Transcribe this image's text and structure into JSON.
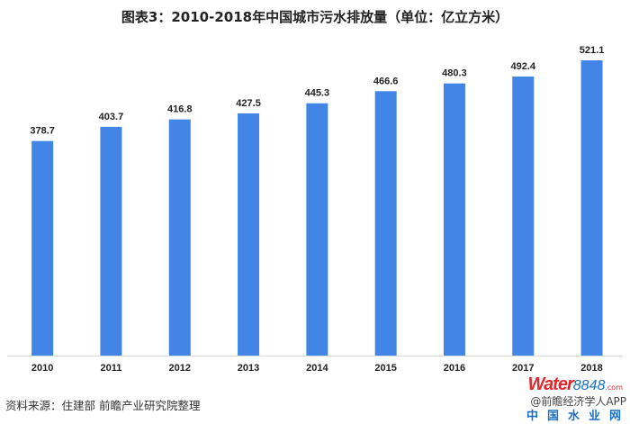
{
  "chart_data": {
    "type": "bar",
    "title": "图表3：2010-2018年中国城市污水排放量（单位：亿立方米）",
    "categories": [
      "2010",
      "2011",
      "2012",
      "2013",
      "2014",
      "2015",
      "2016",
      "2017",
      "2018"
    ],
    "values": [
      378.7,
      403.7,
      416.8,
      427.5,
      445.3,
      466.6,
      480.3,
      492.4,
      521.1
    ],
    "ylim": [
      0,
      521.1
    ],
    "grid": false,
    "bar_color": "#4285e6",
    "xlabel": "",
    "ylabel": ""
  },
  "source": "资料来源：住建部 前瞻产业研究院整理",
  "credit": "@前瞻经济学人APP",
  "logo": {
    "water": "Water",
    "num": "8848",
    "com": ".com",
    "cn": "中国水业网"
  }
}
